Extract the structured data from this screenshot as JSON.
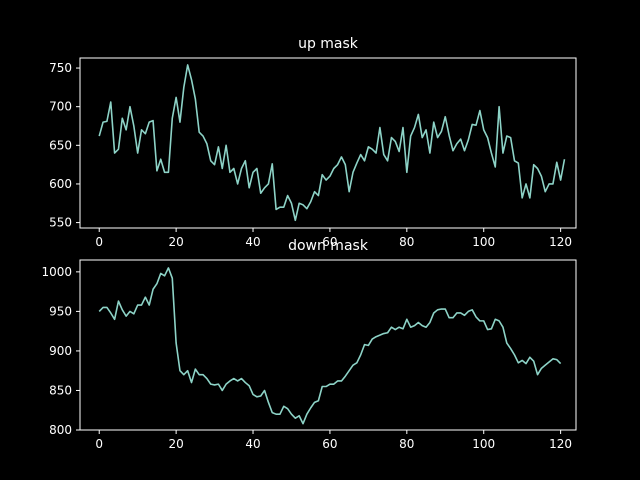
{
  "colors": {
    "background": "#000000",
    "foreground": "#ffffff",
    "line": "#8dd3c7"
  },
  "chart_data": [
    {
      "type": "line",
      "title": "up mask",
      "xlim": [
        -5,
        124
      ],
      "ylim": [
        543,
        763
      ],
      "xticks": [
        0,
        20,
        40,
        60,
        80,
        100,
        120
      ],
      "yticks": [
        550,
        600,
        650,
        700,
        750
      ],
      "grid": false,
      "y": [
        662,
        680,
        681,
        706,
        640,
        645,
        685,
        670,
        700,
        675,
        640,
        670,
        665,
        680,
        682,
        617,
        632,
        615,
        615,
        685,
        712,
        680,
        725,
        754,
        735,
        710,
        667,
        662,
        652,
        630,
        625,
        648,
        620,
        650,
        615,
        620,
        600,
        620,
        630,
        595,
        615,
        620,
        588,
        595,
        600,
        626,
        567,
        570,
        570,
        585,
        575,
        553,
        575,
        573,
        568,
        577,
        590,
        585,
        612,
        605,
        610,
        620,
        625,
        635,
        625,
        590,
        615,
        627,
        638,
        630,
        648,
        645,
        640,
        673,
        638,
        630,
        660,
        655,
        642,
        673,
        615,
        662,
        673,
        690,
        660,
        670,
        640,
        680,
        660,
        668,
        687,
        663,
        643,
        652,
        658,
        643,
        657,
        677,
        676,
        695,
        670,
        660,
        640,
        622,
        700,
        640,
        662,
        660,
        630,
        627,
        582,
        600,
        582,
        625,
        620,
        610,
        590,
        600,
        600,
        628,
        605,
        632
      ]
    },
    {
      "type": "line",
      "title": "down mask",
      "xlim": [
        -5,
        124
      ],
      "ylim": [
        800,
        1015
      ],
      "xticks": [
        0,
        20,
        40,
        60,
        80,
        100,
        120
      ],
      "yticks": [
        800,
        850,
        900,
        950,
        1000
      ],
      "grid": false,
      "y": [
        950,
        955,
        955,
        948,
        940,
        963,
        952,
        944,
        950,
        947,
        958,
        958,
        968,
        958,
        978,
        985,
        998,
        995,
        1005,
        992,
        910,
        875,
        870,
        875,
        860,
        877,
        870,
        870,
        865,
        858,
        857,
        858,
        850,
        858,
        862,
        865,
        862,
        865,
        860,
        856,
        845,
        842,
        843,
        850,
        835,
        822,
        820,
        820,
        830,
        827,
        820,
        815,
        818,
        808,
        820,
        828,
        835,
        837,
        855,
        855,
        858,
        858,
        862,
        862,
        868,
        875,
        882,
        885,
        895,
        908,
        907,
        915,
        918,
        920,
        922,
        923,
        930,
        927,
        930,
        928,
        940,
        930,
        932,
        936,
        932,
        930,
        936,
        948,
        952,
        953,
        953,
        942,
        942,
        948,
        948,
        945,
        950,
        952,
        943,
        938,
        938,
        927,
        928,
        940,
        938,
        930,
        910,
        903,
        895,
        885,
        888,
        884,
        892,
        887,
        870,
        878,
        882,
        886,
        890,
        889,
        884
      ]
    }
  ]
}
